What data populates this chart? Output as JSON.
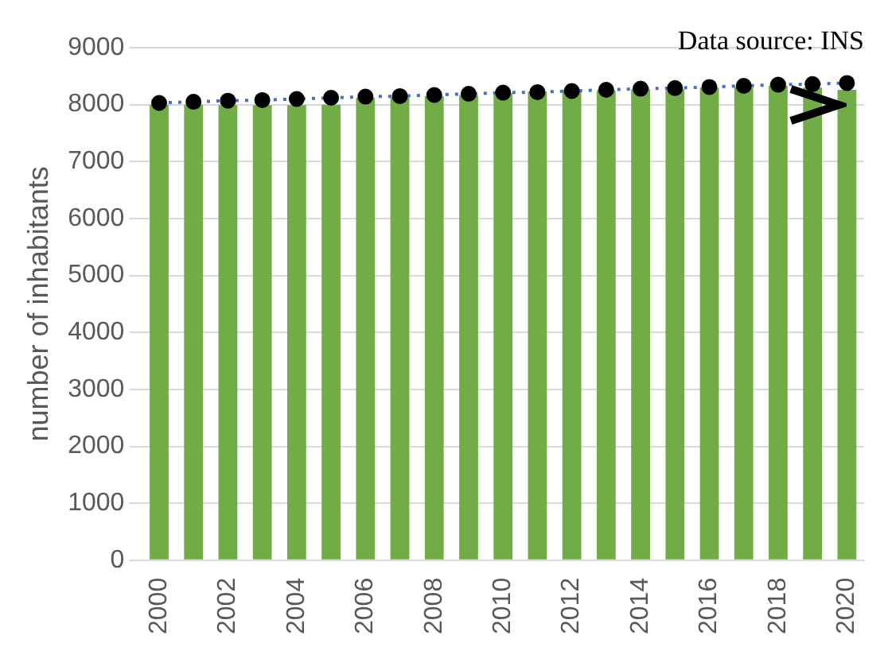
{
  "chart_data": {
    "type": "bar",
    "ylabel": "number of inhabitants",
    "categories": [
      "2000",
      null,
      "2002",
      null,
      "2004",
      null,
      "2006",
      null,
      "2008",
      null,
      "2010",
      null,
      "2012",
      null,
      "2014",
      null,
      "2016",
      null,
      "2018",
      null,
      "2020"
    ],
    "series": [
      {
        "color": "#70ad47",
        "values": [
          8000,
          8000,
          7990,
          7990,
          7990,
          8000,
          8120,
          8130,
          8150,
          8170,
          8200,
          8230,
          8260,
          8250,
          8270,
          8270,
          8300,
          8310,
          8330,
          8300,
          8260
        ]
      },
      {
        "type": "line",
        "color": "#000000",
        "line_style": "dotted",
        "marker": "circle",
        "values": [
          8030,
          8050,
          8070,
          8080,
          8100,
          8120,
          8140,
          8150,
          8170,
          8190,
          8210,
          8220,
          8240,
          8260,
          8280,
          8290,
          8310,
          8330,
          8350,
          8360,
          8380
        ]
      }
    ],
    "ylim": [
      0,
      9000
    ],
    "yticks": [
      0,
      1000,
      2000,
      3000,
      4000,
      5000,
      6000,
      7000,
      8000,
      9000
    ],
    "grid": "y",
    "legend": false,
    "annotations": [
      "Data source: INS"
    ]
  }
}
